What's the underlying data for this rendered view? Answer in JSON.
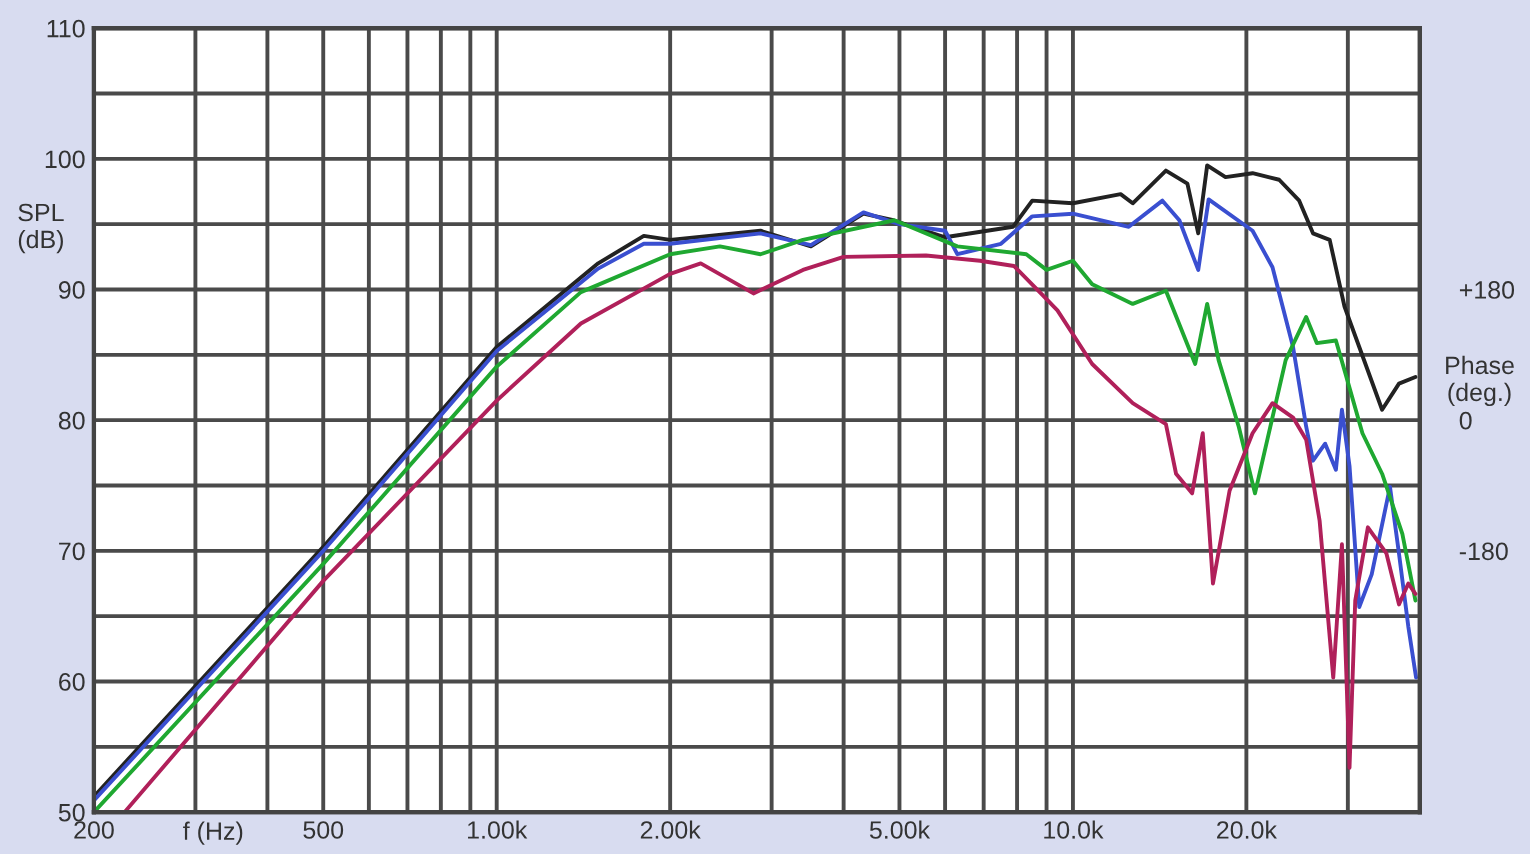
{
  "chart_data": {
    "type": "line",
    "ylabel": "SPL\n(dB)",
    "xlabel": "f (Hz)",
    "y2label": "Phase\n(deg.)",
    "log": "x",
    "grid": true,
    "legend": false,
    "marker": "none",
    "line_style": "solid",
    "xlim": [
      200,
      40000
    ],
    "ylim": [
      50,
      110
    ],
    "y2lim": [
      -540,
      540
    ],
    "xticks": [
      200,
      {
        "value": 300,
        "label": null
      },
      {
        "value": 400,
        "label": null
      },
      500,
      {
        "value": 600,
        "label": null
      },
      {
        "value": 700,
        "label": null
      },
      {
        "value": 800,
        "label": null
      },
      {
        "value": 900,
        "label": null
      },
      {
        "value": 1000,
        "label": "1.00k"
      },
      {
        "value": 2000,
        "label": "2.00k"
      },
      {
        "value": 3000,
        "label": null
      },
      {
        "value": 4000,
        "label": null
      },
      {
        "value": 5000,
        "label": "5.00k"
      },
      {
        "value": 6000,
        "label": null
      },
      {
        "value": 7000,
        "label": null
      },
      {
        "value": 8000,
        "label": null
      },
      {
        "value": 9000,
        "label": null
      },
      {
        "value": 10000,
        "label": "10.0k"
      },
      {
        "value": 20000,
        "label": "20.0k"
      },
      {
        "value": 30000,
        "label": null
      }
    ],
    "yticks": [
      50,
      {
        "value": 55,
        "label": null
      },
      60,
      {
        "value": 65,
        "label": null
      },
      70,
      {
        "value": 75,
        "label": null
      },
      80,
      {
        "value": 85,
        "label": null
      },
      90,
      {
        "value": 95,
        "label": null
      },
      100,
      {
        "value": 105,
        "label": null
      },
      110
    ],
    "y2ticks": [
      {
        "value": 180,
        "label": "+180"
      },
      0,
      -180
    ],
    "series": [
      {
        "color": "#222222",
        "x": [
          200,
          500,
          1000,
          1500,
          1800,
          2000,
          2870,
          3510,
          4330,
          4880,
          6000,
          7870,
          8500,
          10000,
          12100,
          12700,
          14500,
          15800,
          16500,
          17100,
          18400,
          20500,
          22800,
          24700,
          26100,
          27900,
          29600,
          31400,
          34400,
          36800,
          39300
        ],
        "values": [
          51.2,
          70.3,
          85.6,
          92.0,
          94.1,
          93.8,
          94.5,
          93.3,
          95.8,
          95.3,
          94.0,
          94.8,
          96.8,
          96.6,
          97.3,
          96.6,
          99.1,
          98.1,
          94.3,
          99.5,
          98.6,
          98.9,
          98.4,
          96.8,
          94.3,
          93.8,
          88.7,
          85.6,
          80.8,
          82.8,
          83.3
        ]
      },
      {
        "color": "#3a4fd0",
        "x": [
          200,
          500,
          1000,
          1500,
          1800,
          2000,
          2870,
          3510,
          4330,
          5000,
          6000,
          6300,
          7500,
          8500,
          10000,
          12500,
          14300,
          15300,
          16500,
          17200,
          20500,
          22200,
          24100,
          25400,
          26100,
          27400,
          28600,
          29300,
          30200,
          31400,
          33000,
          35500,
          36800,
          38200,
          39400
        ],
        "values": [
          50.9,
          70.0,
          85.3,
          91.6,
          93.5,
          93.5,
          94.3,
          93.4,
          95.9,
          95.0,
          94.5,
          92.7,
          93.5,
          95.6,
          95.8,
          94.8,
          96.8,
          95.3,
          91.5,
          96.9,
          94.5,
          91.7,
          85.6,
          79.5,
          76.9,
          78.2,
          76.2,
          80.8,
          76.5,
          65.7,
          68.2,
          74.9,
          69.8,
          64.2,
          60.3
        ]
      },
      {
        "color": "#1fa831",
        "x": [
          200,
          500,
          1000,
          1400,
          2000,
          2440,
          2870,
          3400,
          4900,
          6300,
          8300,
          9000,
          10000,
          10800,
          12700,
          14500,
          16300,
          17100,
          17900,
          19400,
          20700,
          23400,
          25400,
          26500,
          28600,
          29700,
          31800,
          34400,
          37300,
          39300
        ],
        "values": [
          50.0,
          69.0,
          84.1,
          89.8,
          92.7,
          93.3,
          92.7,
          93.8,
          95.3,
          93.3,
          92.7,
          91.5,
          92.2,
          90.4,
          88.9,
          89.9,
          84.3,
          88.9,
          84.6,
          79.5,
          74.4,
          84.6,
          87.9,
          85.9,
          86.1,
          83.6,
          79.0,
          75.9,
          71.3,
          66.2
        ]
      },
      {
        "color": "#b0205a",
        "x": [
          226,
          500,
          1000,
          1400,
          2000,
          2260,
          2790,
          3400,
          4000,
          5560,
          6900,
          7900,
          8800,
          9400,
          10800,
          12700,
          14500,
          15100,
          16100,
          16800,
          17500,
          18700,
          20500,
          22200,
          24100,
          25400,
          26800,
          28300,
          29300,
          30200,
          30900,
          32500,
          35000,
          36800,
          38200,
          39300
        ],
        "values": [
          50.0,
          67.7,
          81.5,
          87.4,
          91.2,
          92.0,
          89.7,
          91.5,
          92.5,
          92.6,
          92.2,
          91.8,
          89.7,
          88.4,
          84.3,
          81.3,
          79.7,
          75.9,
          74.4,
          79.0,
          67.5,
          74.6,
          79.0,
          81.3,
          80.2,
          78.5,
          72.3,
          60.3,
          70.5,
          53.4,
          66.2,
          71.8,
          69.8,
          65.9,
          67.5,
          66.7
        ]
      }
    ]
  }
}
